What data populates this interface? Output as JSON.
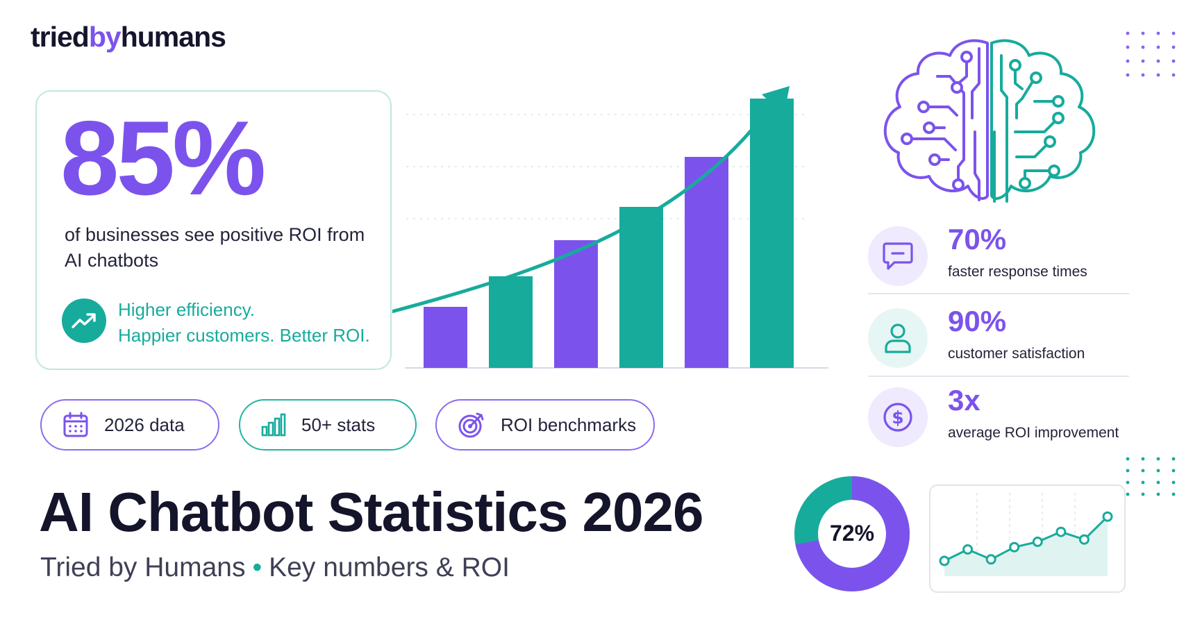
{
  "logo": {
    "part1": "tried",
    "part2": "by",
    "part3": "humans"
  },
  "hero": {
    "percent": "85%",
    "description": "of businesses see positive ROI from AI chatbots",
    "tagline_line1": "Higher efficiency.",
    "tagline_line2": "Happier customers. Better ROI."
  },
  "badges": [
    {
      "label": "2026 data",
      "icon": "calendar-icon"
    },
    {
      "label": "50+ stats",
      "icon": "bar-chart-icon"
    },
    {
      "label": "ROI benchmarks",
      "icon": "target-icon"
    }
  ],
  "title": "AI Chatbot Statistics 2026",
  "subtitle": {
    "brand": "Tried by Humans",
    "separator": "•",
    "topic": "Key numbers & ROI"
  },
  "stats": [
    {
      "value": "70%",
      "label": "faster response times",
      "icon": "chat-icon"
    },
    {
      "value": "90%",
      "label": "customer satisfaction",
      "icon": "user-icon"
    },
    {
      "value": "3x",
      "label": "average ROI improvement",
      "icon": "dollar-icon"
    }
  ],
  "donut": {
    "label": "72%",
    "value": 72
  },
  "colors": {
    "purple": "#7b53ec",
    "teal": "#17ab9c",
    "dark": "#14142b"
  },
  "chart_data": [
    {
      "type": "bar",
      "values": [
        22,
        33,
        46,
        58,
        76,
        97
      ],
      "colors": [
        "#7b53ec",
        "#17ab9c",
        "#7b53ec",
        "#17ab9c",
        "#7b53ec",
        "#17ab9c"
      ],
      "ylim": [
        0,
        100
      ],
      "trend_arrow": true
    },
    {
      "type": "area",
      "values": [
        20,
        35,
        22,
        38,
        45,
        58,
        48,
        78
      ],
      "ylim": [
        0,
        100
      ]
    },
    {
      "type": "pie",
      "values": [
        72,
        28
      ]
    }
  ]
}
